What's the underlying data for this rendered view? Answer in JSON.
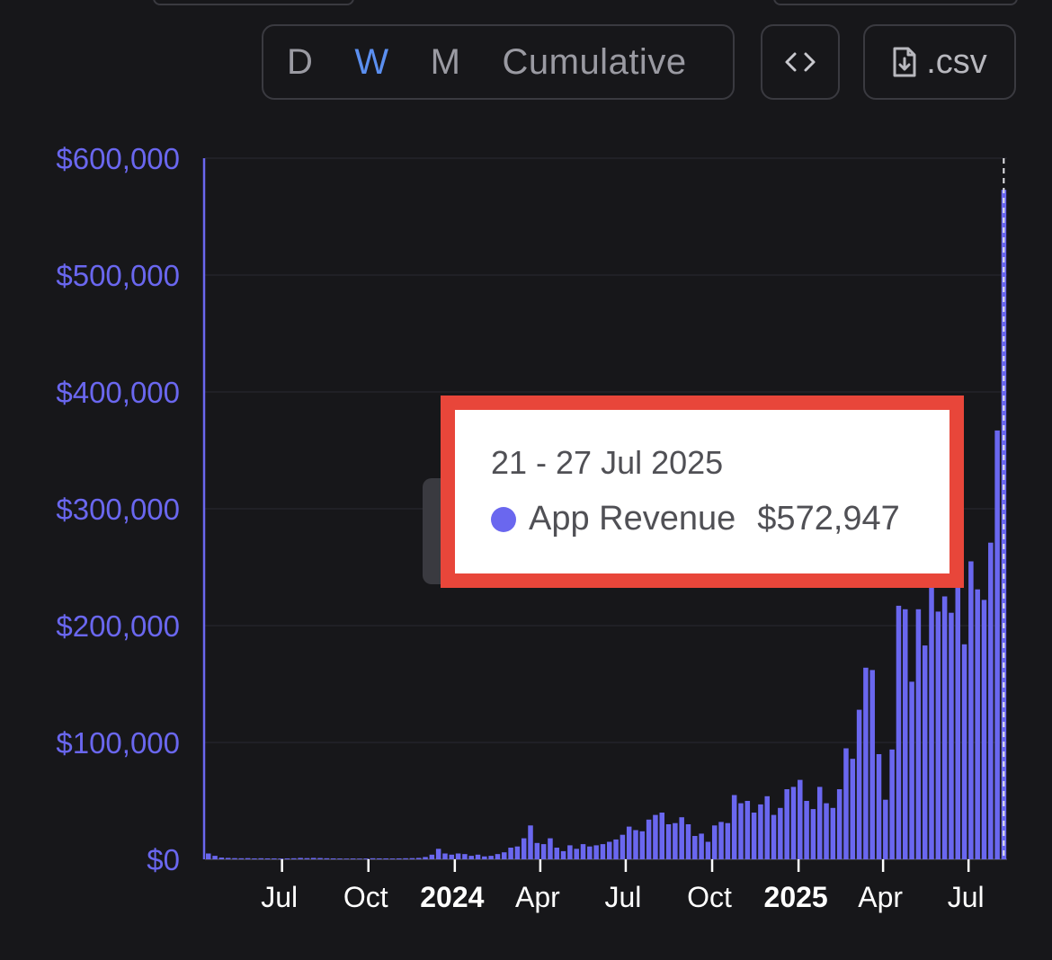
{
  "toolbar": {
    "periods": [
      "D",
      "W",
      "M",
      "Cumulative"
    ],
    "active_period": "W",
    "embed_icon": "code-brackets-icon",
    "csv_icon": "file-download-icon",
    "csv_label": ".csv"
  },
  "colors": {
    "background": "#17171a",
    "series": "#6a67ef",
    "axis_label": "#6a67ef",
    "x_tick_label": "#ffffff",
    "tooltip_border": "#e8463a",
    "active_tab": "#5b8ff0"
  },
  "tooltip": {
    "date_range": "21 - 27 Jul 2025",
    "series_name": "App Revenue",
    "value": "$572,947"
  },
  "chart_data": {
    "type": "bar",
    "series_name": "App Revenue",
    "interval": "weekly",
    "x_range": [
      "2023-04-10",
      "2025-07-27"
    ],
    "ylim": [
      0,
      600000
    ],
    "y_ticks": [
      0,
      100000,
      200000,
      300000,
      400000,
      500000,
      600000
    ],
    "y_tick_labels": [
      "$0",
      "$100,000",
      "$200,000",
      "$300,000",
      "$400,000",
      "$500,000",
      "$600,000"
    ],
    "x_ticks": [
      {
        "label": "Jul",
        "date": "2023-07-01",
        "bold": false
      },
      {
        "label": "Oct",
        "date": "2023-10-01",
        "bold": false
      },
      {
        "label": "2024",
        "date": "2024-01-01",
        "bold": true
      },
      {
        "label": "Apr",
        "date": "2024-04-01",
        "bold": false
      },
      {
        "label": "Jul",
        "date": "2024-07-01",
        "bold": false
      },
      {
        "label": "Oct",
        "date": "2024-10-01",
        "bold": false
      },
      {
        "label": "2025",
        "date": "2025-01-01",
        "bold": true
      },
      {
        "label": "Apr",
        "date": "2025-04-01",
        "bold": false
      },
      {
        "label": "Jul",
        "date": "2025-07-01",
        "bold": false
      }
    ],
    "first_week_start": "2023-04-10",
    "values": [
      5000,
      3000,
      1500,
      1200,
      1000,
      900,
      1000,
      800,
      900,
      800,
      800,
      700,
      800,
      900,
      1200,
      1000,
      1200,
      1100,
      900,
      800,
      700,
      600,
      700,
      600,
      700,
      900,
      800,
      800,
      700,
      800,
      900,
      1000,
      1200,
      2000,
      4000,
      9000,
      5000,
      4000,
      5000,
      4500,
      3000,
      4000,
      2500,
      3000,
      4500,
      6000,
      10000,
      11000,
      18000,
      29000,
      14000,
      13000,
      18000,
      10000,
      7000,
      12000,
      9000,
      13000,
      11000,
      12000,
      13000,
      15000,
      17000,
      21000,
      28000,
      25000,
      24000,
      34000,
      38000,
      40000,
      30000,
      31000,
      36000,
      30000,
      20000,
      22000,
      15000,
      29000,
      32000,
      31000,
      55000,
      48000,
      50000,
      40000,
      47000,
      54000,
      38000,
      44000,
      60000,
      62000,
      68000,
      50000,
      43000,
      62000,
      48000,
      44000,
      60000,
      95000,
      86000,
      128000,
      164000,
      162000,
      90000,
      51000,
      94000,
      217000,
      214000,
      152000,
      214000,
      183000,
      249000,
      212000,
      225000,
      211000,
      254000,
      184000,
      255000,
      231000,
      222000,
      271000,
      367000,
      572947
    ],
    "highlight": {
      "date_range": "21 - 27 Jul 2025",
      "value": 572947
    }
  }
}
